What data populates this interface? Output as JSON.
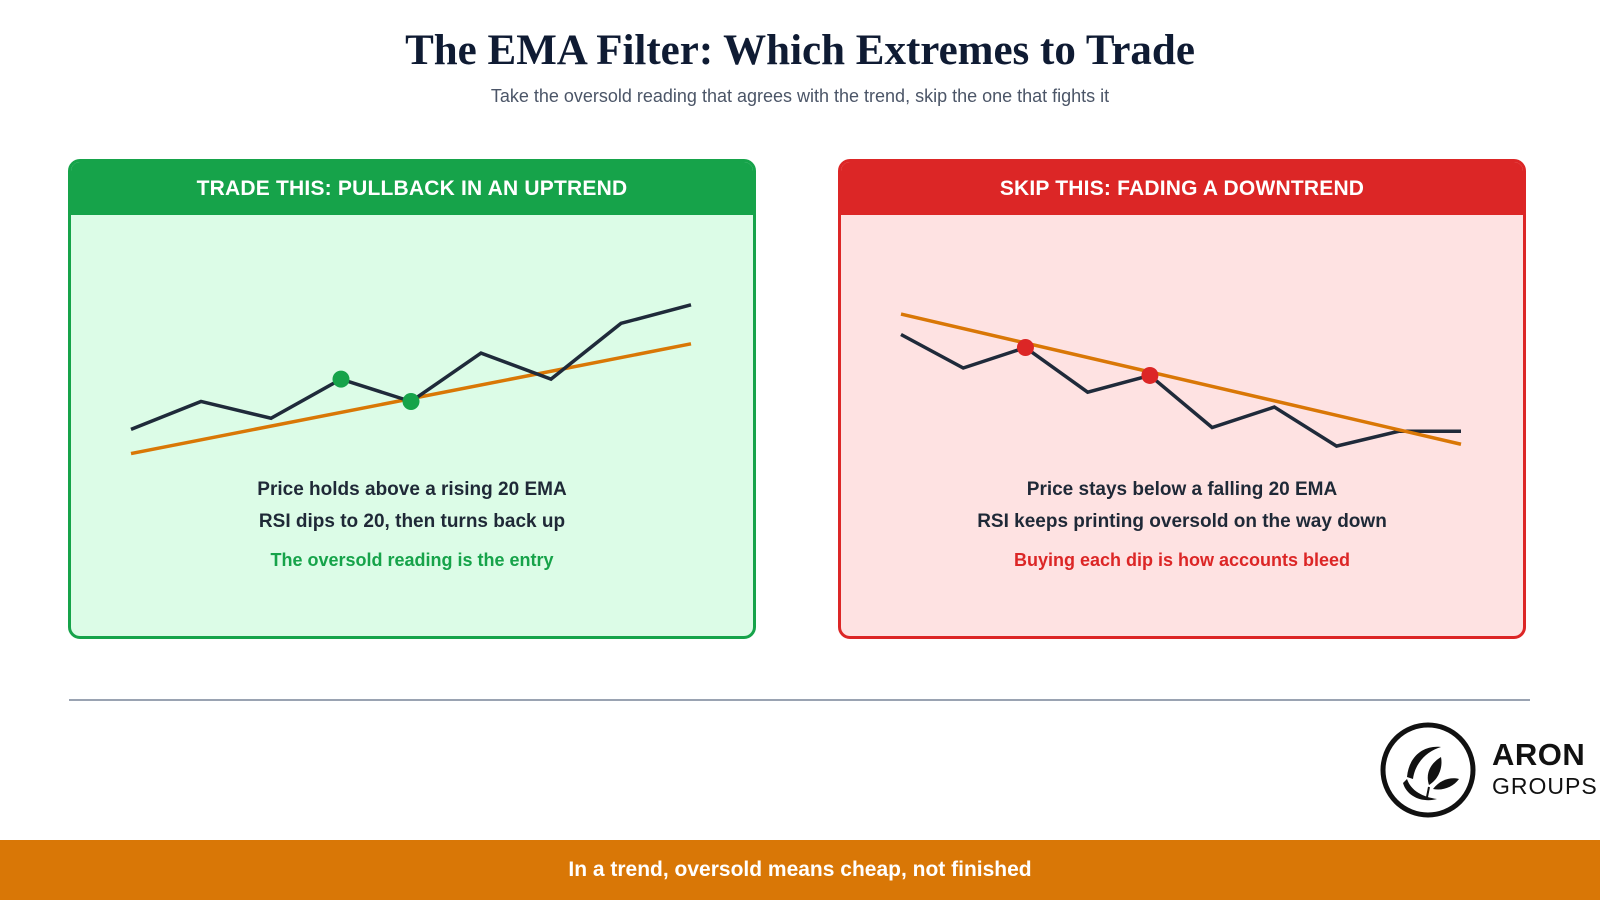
{
  "header": {
    "title": "The EMA Filter: Which Extremes to Trade",
    "subtitle": "Take the oversold reading that agrees with the trend, skip the one that fights it"
  },
  "colors": {
    "price_line": "#1f2a3a",
    "ema_line": "#d97706",
    "good": "#16a34a",
    "good_bg": "#dcfce7",
    "bad": "#dc2626",
    "bad_bg": "#fee2e2",
    "footer_bg": "#d97706"
  },
  "chart_data": [
    {
      "type": "line",
      "title": "TRADE THIS: PULLBACK IN AN UPTREND",
      "y_direction": "higher-is-up",
      "ylim": [
        0,
        100
      ],
      "series": [
        {
          "role": "price",
          "x": [
            0,
            1,
            2,
            3,
            4,
            5,
            6,
            7,
            8
          ],
          "values": [
            17,
            32,
            23,
            44,
            32,
            58,
            44,
            74,
            84
          ]
        },
        {
          "role": "ema",
          "x": [
            0,
            8
          ],
          "values": [
            4,
            63
          ]
        }
      ],
      "markers": [
        {
          "x": 3,
          "y": 44
        },
        {
          "x": 4,
          "y": 32
        }
      ],
      "lines": [
        "Price holds above a rising 20 EMA",
        "RSI dips to 20, then turns back up"
      ],
      "note": "The oversold reading is the entry"
    },
    {
      "type": "line",
      "title": "SKIP THIS: FADING A DOWNTREND",
      "ylim": [
        0,
        100
      ],
      "series": [
        {
          "role": "price",
          "x": [
            0,
            1,
            2,
            3,
            4,
            5,
            6,
            7,
            8,
            9
          ],
          "values": [
            68,
            50,
            61,
            37,
            46,
            18,
            29,
            8,
            16,
            16
          ]
        },
        {
          "role": "ema",
          "x": [
            0,
            9
          ],
          "values": [
            79,
            9
          ]
        }
      ],
      "markers": [
        {
          "x": 2,
          "y": 61
        },
        {
          "x": 4,
          "y": 46
        }
      ],
      "lines": [
        "Price stays below a falling 20 EMA",
        "RSI keeps printing oversold on the way down"
      ],
      "note": "Buying each dip is how accounts bleed"
    }
  ],
  "logo": {
    "name": "ARON",
    "sub": "GROUPS"
  },
  "footer": "In a trend, oversold means cheap, not finished"
}
